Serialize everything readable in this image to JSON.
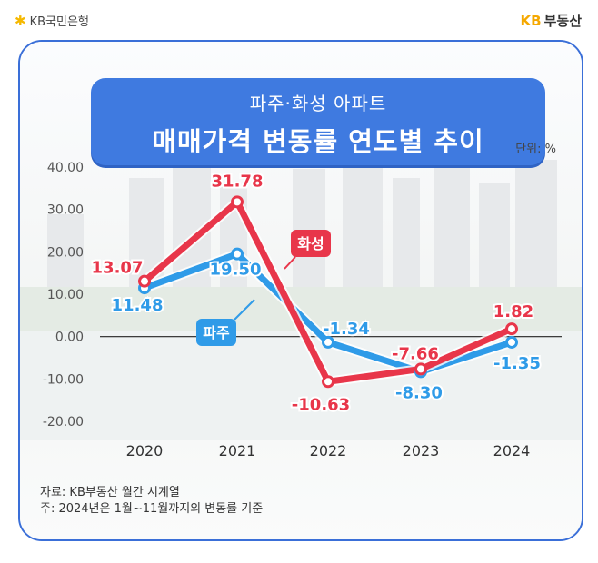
{
  "header": {
    "bank_name": "KB국민은행",
    "brand_kb": "KB",
    "brand_name": "부동산"
  },
  "banner": {
    "subtitle": "파주·화성 아파트",
    "title": "매매가격 변동률 연도별 추이"
  },
  "chart_data": {
    "type": "line",
    "title": "매매가격 변동률 연도별 추이",
    "subtitle": "파주·화성 아파트",
    "unit_label": "단위: %",
    "categories": [
      "2020",
      "2021",
      "2022",
      "2023",
      "2024"
    ],
    "ylim": [
      -20,
      40
    ],
    "yticks": [
      "40.00",
      "30.00",
      "20.00",
      "10.00",
      "0.00",
      "-10.00",
      "-20.00"
    ],
    "ytick_values": [
      40,
      30,
      20,
      10,
      0,
      -10,
      -20
    ],
    "series": [
      {
        "name": "화성",
        "color": "#e8364a",
        "values": [
          13.07,
          31.78,
          -10.63,
          -7.66,
          1.82
        ],
        "labels": [
          "13.07",
          "31.78",
          "-10.63",
          "-7.66",
          "1.82"
        ]
      },
      {
        "name": "파주",
        "color": "#2f9be8",
        "values": [
          11.48,
          19.5,
          -1.34,
          -8.3,
          -1.35
        ],
        "labels": [
          "11.48",
          "19.50",
          "-1.34",
          "-8.30",
          "-1.35"
        ]
      }
    ]
  },
  "footer": {
    "source": "자료: KB부동산 월간 시계열",
    "note": "주: 2024년은 1월~11월까지의 변동률 기준"
  }
}
